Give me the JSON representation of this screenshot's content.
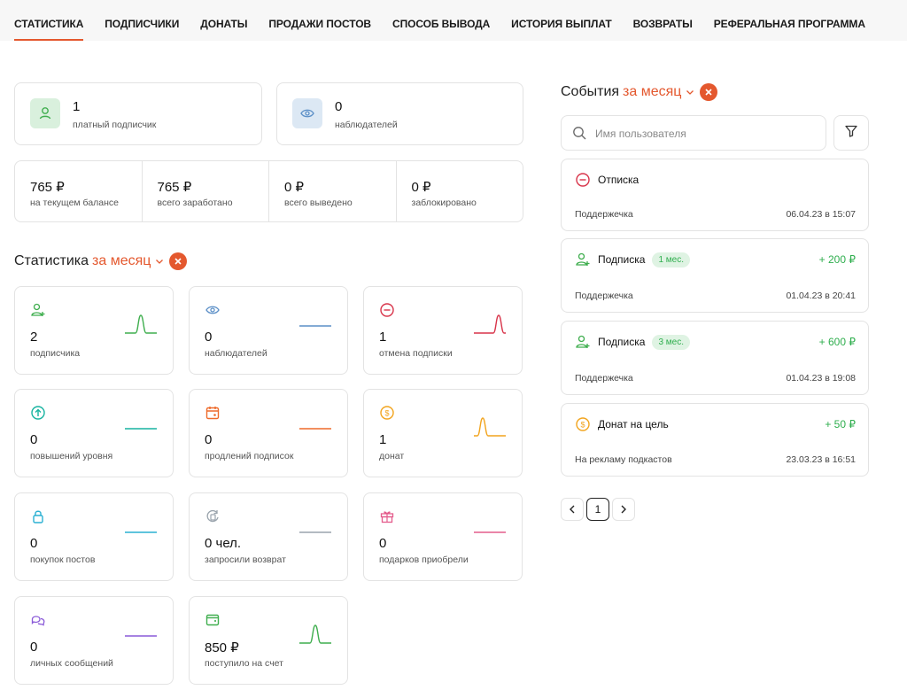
{
  "tabs": [
    "Статистика",
    "Подписчики",
    "Донаты",
    "Продажи постов",
    "Способ вывода",
    "История выплат",
    "Возвраты",
    "Реферальная программа"
  ],
  "summary": {
    "paid": {
      "count": "1",
      "label": "платный подписчик"
    },
    "watchers": {
      "count": "0",
      "label": "наблюдателей"
    }
  },
  "balance": [
    {
      "value": "765 ₽",
      "label": "на текущем балансе"
    },
    {
      "value": "765 ₽",
      "label": "всего заработано"
    },
    {
      "value": "0 ₽",
      "label": "всего выведено"
    },
    {
      "value": "0 ₽",
      "label": "заблокировано"
    }
  ],
  "stats_section": {
    "title": "Статистика",
    "period": "за месяц"
  },
  "stats": [
    {
      "value": "2",
      "label": "подписчика",
      "icon": "user-plus-icon",
      "color": "#3fae4e",
      "trend": "peak"
    },
    {
      "value": "0",
      "label": "наблюдателей",
      "icon": "eye-icon",
      "color": "#5b8fc7",
      "trend": "flat"
    },
    {
      "value": "1",
      "label": "отмена подписки",
      "icon": "minus-circle-icon",
      "color": "#d8344a",
      "trend": "peak-right"
    },
    {
      "value": "0",
      "label": "повышений уровня",
      "icon": "arrow-up-circle-icon",
      "color": "#17b3a0",
      "trend": "flat"
    },
    {
      "value": "0",
      "label": "продлений подписок",
      "icon": "calendar-icon",
      "color": "#ee6a2a",
      "trend": "flat"
    },
    {
      "value": "1",
      "label": "донат",
      "icon": "coin-icon",
      "color": "#f2a41d",
      "trend": "peak-left"
    },
    {
      "value": "0",
      "label": "покупок постов",
      "icon": "lock-icon",
      "color": "#2ab0d2",
      "trend": "flat"
    },
    {
      "value": "0 чел.",
      "label": "запросили возврат",
      "icon": "refund-icon",
      "color": "#9aa4ad",
      "trend": "flat"
    },
    {
      "value": "0",
      "label": "подарков приобрели",
      "icon": "gift-icon",
      "color": "#e45d8c",
      "trend": "flat"
    },
    {
      "value": "0",
      "label": "личных сообщений",
      "icon": "chat-icon",
      "color": "#8a5ad8",
      "trend": "flat"
    },
    {
      "value": "850 ₽",
      "label": "поступило на счет",
      "icon": "wallet-icon",
      "color": "#3fae4e",
      "trend": "peak"
    }
  ],
  "events_section": {
    "title": "События",
    "period": "за месяц"
  },
  "search": {
    "placeholder": "Имя пользователя"
  },
  "events": [
    {
      "title": "Отписка",
      "icon": "minus-circle-icon",
      "icon_color": "#d8344a",
      "badge": "",
      "amount": "",
      "user": "Поддержечка",
      "date": "06.04.23 в 15:07"
    },
    {
      "title": "Подписка",
      "icon": "user-plus-icon",
      "icon_color": "#3fae4e",
      "badge": "1 мес.",
      "amount": "+ 200 ₽",
      "user": "Поддержечка",
      "date": "01.04.23 в 20:41"
    },
    {
      "title": "Подписка",
      "icon": "user-plus-icon",
      "icon_color": "#3fae4e",
      "badge": "3 мес.",
      "amount": "+ 600 ₽",
      "user": "Поддержечка",
      "date": "01.04.23 в 19:08"
    },
    {
      "title": "Донат на цель",
      "icon": "coin-icon",
      "icon_color": "#f2a41d",
      "badge": "",
      "amount": "+ 50 ₽",
      "user": "На рекламу подкастов",
      "date": "23.03.23 в 16:51"
    }
  ],
  "pagination": {
    "current": "1"
  },
  "colors": {
    "accent": "#e4582e",
    "positive": "#2fae4e",
    "border": "#e3e3e3"
  }
}
